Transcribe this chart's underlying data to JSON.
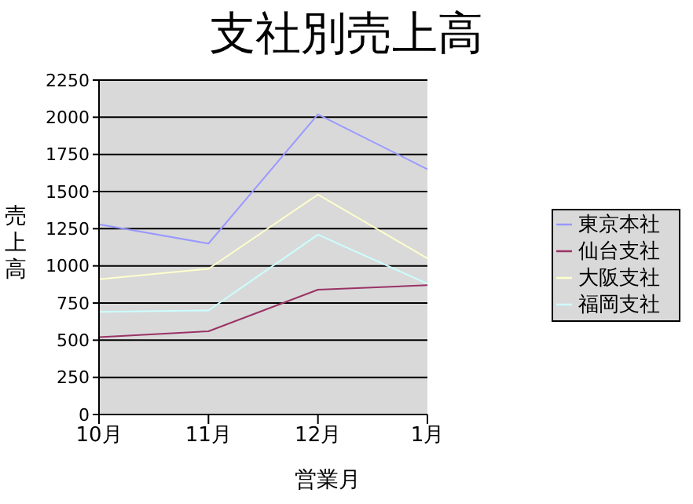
{
  "chart_data": {
    "type": "line",
    "title": "支社別売上高",
    "xlabel": "営業月",
    "ylabel": "売上高",
    "categories": [
      "10月",
      "11月",
      "12月",
      "1月"
    ],
    "series": [
      {
        "name": "東京本社",
        "color": "#9999ff",
        "values": [
          1280,
          1150,
          2020,
          1650
        ]
      },
      {
        "name": "仙台支社",
        "color": "#993366",
        "values": [
          520,
          560,
          840,
          870
        ]
      },
      {
        "name": "大阪支社",
        "color": "#ffffcc",
        "values": [
          910,
          980,
          1480,
          1050
        ]
      },
      {
        "name": "福岡支社",
        "color": "#ccffff",
        "values": [
          690,
          700,
          1210,
          880
        ]
      }
    ],
    "ylim": [
      0,
      2250
    ],
    "yticks": [
      0,
      250,
      500,
      750,
      1000,
      1250,
      1500,
      1750,
      2000,
      2250
    ],
    "grid": "y",
    "legend": "right",
    "marker": "none"
  }
}
